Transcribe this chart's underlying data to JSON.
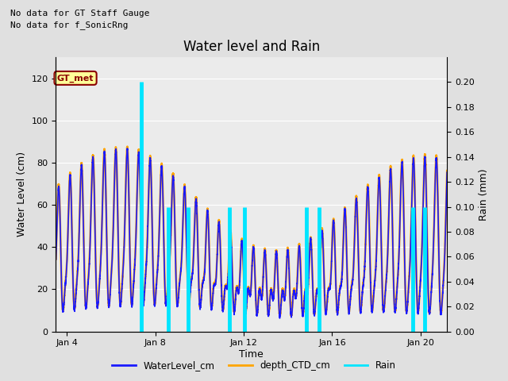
{
  "title": "Water level and Rain",
  "subtitle1": "No data for GT Staff Gauge",
  "subtitle2": "No data for f_SonicRng",
  "annotation": "GT_met",
  "xlabel": "Time",
  "ylabel_left": "Water Level (cm)",
  "ylabel_right": "Rain (mm)",
  "ylim_left": [
    0,
    130
  ],
  "ylim_right": [
    0,
    0.22
  ],
  "yticks_left": [
    0,
    20,
    40,
    60,
    80,
    100,
    120
  ],
  "yticks_right": [
    0.0,
    0.02,
    0.04,
    0.06,
    0.08,
    0.1,
    0.12,
    0.14,
    0.16,
    0.18,
    0.2
  ],
  "xstart_day": 3.5,
  "xend_day": 21.2,
  "xtick_days": [
    4,
    8,
    12,
    16,
    20
  ],
  "xtick_labels": [
    "Jan 4",
    "Jan 8",
    "Jan 12",
    "Jan 16",
    "Jan 20"
  ],
  "bg_color": "#e0e0e0",
  "plot_bg_color": "#ebebeb",
  "wl_color": "#1a1aff",
  "ctd_color": "#ffa500",
  "rain_color": "#00e5ff",
  "legend_labels": [
    "WaterLevel_cm",
    "depth_CTD_cm",
    "Rain"
  ],
  "legend_colors": [
    "#1a1aff",
    "#ffa500",
    "#00e5ff"
  ],
  "wl_linewidth": 1.2,
  "ctd_linewidth": 1.8,
  "rain_linewidth": 1.5,
  "rain_events": [
    [
      7.35,
      0.2
    ],
    [
      8.6,
      0.1
    ],
    [
      9.5,
      0.1
    ],
    [
      11.35,
      0.1
    ],
    [
      12.05,
      0.1
    ],
    [
      14.82,
      0.1
    ],
    [
      15.4,
      0.1
    ],
    [
      19.65,
      0.1
    ],
    [
      20.2,
      0.1
    ]
  ]
}
